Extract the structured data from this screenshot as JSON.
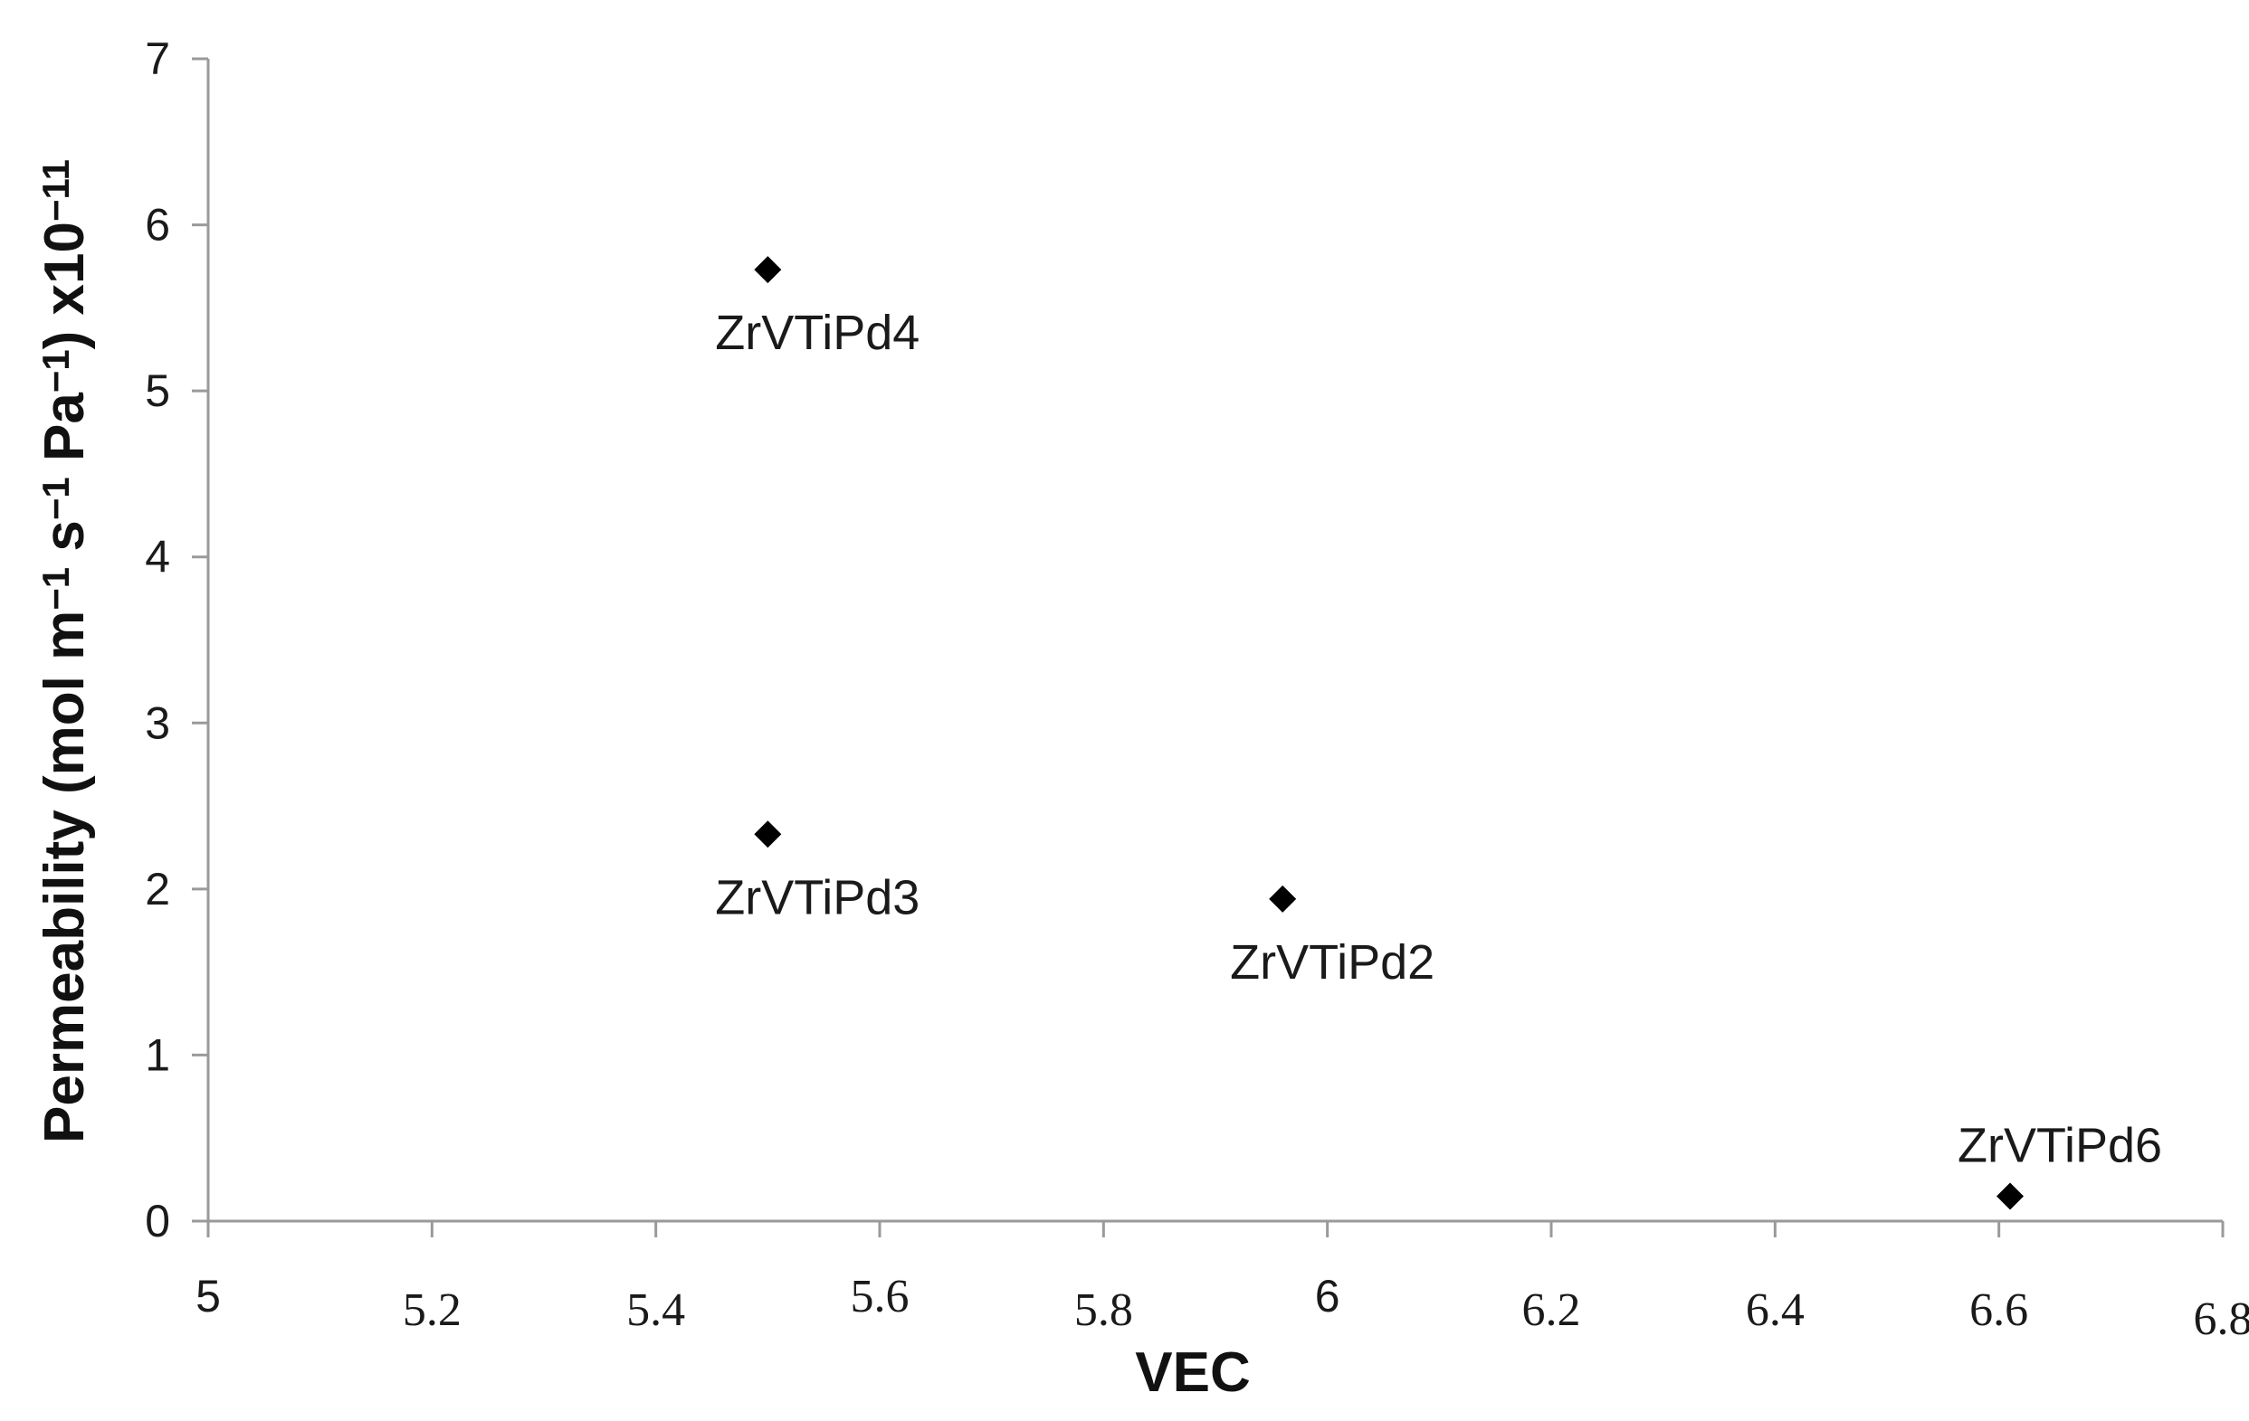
{
  "chart_data": {
    "type": "scatter",
    "xlabel": "VEC",
    "ylabel_parts": [
      {
        "text": "Permeability (mol m"
      },
      {
        "text": "−1",
        "sup": true
      },
      {
        "text": " s"
      },
      {
        "text": "−1",
        "sup": true
      },
      {
        "text": " Pa"
      },
      {
        "text": "−1",
        "sup": true
      },
      {
        "text": ") x10"
      },
      {
        "text": "−11",
        "sup": true
      }
    ],
    "xlim": [
      5,
      6.8
    ],
    "ylim": [
      0,
      7
    ],
    "x_ticks": [
      {
        "value": 5,
        "label": "5",
        "style": "sans"
      },
      {
        "value": 5.2,
        "label": "5.2",
        "style": "serif"
      },
      {
        "value": 5.4,
        "label": "5.4",
        "style": "serif"
      },
      {
        "value": 5.6,
        "label": "5.6",
        "style": "serif"
      },
      {
        "value": 5.8,
        "label": "5.8",
        "style": "serif"
      },
      {
        "value": 6,
        "label": "6",
        "style": "sans"
      },
      {
        "value": 6.2,
        "label": "6.2",
        "style": "serif"
      },
      {
        "value": 6.4,
        "label": "6.4",
        "style": "serif"
      },
      {
        "value": 6.6,
        "label": "6.6",
        "style": "serif"
      },
      {
        "value": 6.8,
        "label": "6.8",
        "style": "serif"
      }
    ],
    "y_ticks": [
      {
        "value": 0,
        "label": "0"
      },
      {
        "value": 1,
        "label": "1"
      },
      {
        "value": 2,
        "label": "2"
      },
      {
        "value": 3,
        "label": "3"
      },
      {
        "value": 4,
        "label": "4"
      },
      {
        "value": 5,
        "label": "5"
      },
      {
        "value": 6,
        "label": "6"
      },
      {
        "value": 7,
        "label": "7"
      }
    ],
    "points": [
      {
        "label": "ZrVTiPd4",
        "x": 5.5,
        "y": 5.73,
        "label_pos": "below"
      },
      {
        "label": "ZrVTiPd3",
        "x": 5.5,
        "y": 2.33,
        "label_pos": "below"
      },
      {
        "label": "ZrVTiPd2",
        "x": 5.96,
        "y": 1.94,
        "label_pos": "below"
      },
      {
        "label": "ZrVTiPd6",
        "x": 6.61,
        "y": 0.15,
        "label_pos": "above"
      }
    ],
    "marker": "diamond",
    "marker_color": "#000000",
    "grid": false,
    "legend": "none"
  }
}
